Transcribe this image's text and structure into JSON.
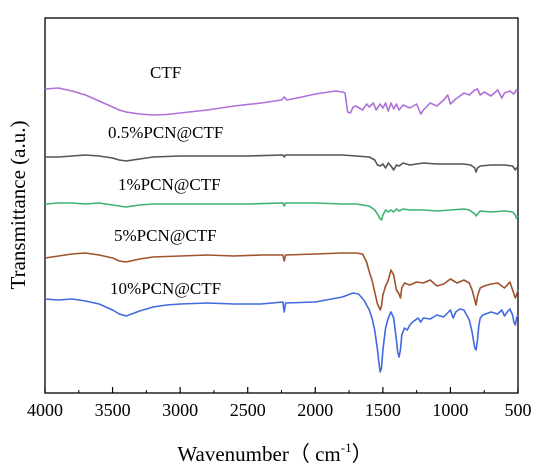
{
  "chart_data": {
    "type": "line",
    "title": "",
    "xlabel": "Wavenumber（ cm",
    "xlabel_sup": "-1",
    "xlabel_close": "）",
    "ylabel": "Transmittance (a.u.)",
    "xlim": [
      4000,
      500
    ],
    "x_reversed": true,
    "y_ticks_shown": false,
    "grid": false,
    "x_ticks": [
      4000,
      3500,
      3000,
      2500,
      2000,
      1500,
      1000,
      500
    ],
    "x_tick_labels": [
      "4000",
      "3500",
      "3000",
      "2500",
      "2000",
      "1500",
      "1000",
      "500"
    ],
    "series": [
      {
        "name": "CTF",
        "color": "#b070d8",
        "baseline": 92,
        "points": [
          [
            4000,
            89
          ],
          [
            3900,
            88
          ],
          [
            3800,
            91
          ],
          [
            3700,
            95
          ],
          [
            3600,
            101
          ],
          [
            3500,
            107
          ],
          [
            3450,
            110
          ],
          [
            3400,
            112
          ],
          [
            3300,
            114
          ],
          [
            3200,
            115
          ],
          [
            3100,
            114.5
          ],
          [
            3000,
            113
          ],
          [
            2800,
            110
          ],
          [
            2600,
            106
          ],
          [
            2400,
            103
          ],
          [
            2250,
            100
          ],
          [
            2230,
            97
          ],
          [
            2210,
            100
          ],
          [
            2100,
            97
          ],
          [
            2000,
            94
          ],
          [
            1900,
            92
          ],
          [
            1850,
            91
          ],
          [
            1800,
            92
          ],
          [
            1780,
            93
          ],
          [
            1760,
            112
          ],
          [
            1740,
            113
          ],
          [
            1720,
            107
          ],
          [
            1700,
            106
          ],
          [
            1650,
            110
          ],
          [
            1620,
            104
          ],
          [
            1600,
            107
          ],
          [
            1570,
            103
          ],
          [
            1550,
            110
          ],
          [
            1520,
            104
          ],
          [
            1500,
            108
          ],
          [
            1480,
            103
          ],
          [
            1460,
            111
          ],
          [
            1440,
            103
          ],
          [
            1420,
            109
          ],
          [
            1400,
            104
          ],
          [
            1380,
            110
          ],
          [
            1350,
            105
          ],
          [
            1300,
            108
          ],
          [
            1250,
            104
          ],
          [
            1220,
            114
          ],
          [
            1200,
            110
          ],
          [
            1150,
            103
          ],
          [
            1100,
            106
          ],
          [
            1050,
            100
          ],
          [
            1020,
            95
          ],
          [
            1000,
            104
          ],
          [
            960,
            99
          ],
          [
            900,
            93
          ],
          [
            860,
            95
          ],
          [
            820,
            90
          ],
          [
            800,
            89
          ],
          [
            780,
            95
          ],
          [
            750,
            92
          ],
          [
            700,
            96
          ],
          [
            650,
            90
          ],
          [
            620,
            98
          ],
          [
            600,
            93
          ],
          [
            560,
            91
          ],
          [
            530,
            94
          ],
          [
            510,
            90
          ],
          [
            500,
            91
          ]
        ]
      },
      {
        "name": "0.5%PCN@CTF",
        "color": "#555555",
        "baseline": 156,
        "points": [
          [
            4000,
            157
          ],
          [
            3900,
            157
          ],
          [
            3800,
            156
          ],
          [
            3700,
            155
          ],
          [
            3600,
            156
          ],
          [
            3500,
            158
          ],
          [
            3450,
            160
          ],
          [
            3400,
            161
          ],
          [
            3300,
            159
          ],
          [
            3200,
            157
          ],
          [
            3000,
            156
          ],
          [
            2500,
            156
          ],
          [
            2240,
            155
          ],
          [
            2230,
            157
          ],
          [
            2220,
            155
          ],
          [
            2000,
            155
          ],
          [
            1800,
            155
          ],
          [
            1700,
            156
          ],
          [
            1600,
            157
          ],
          [
            1560,
            160
          ],
          [
            1540,
            165
          ],
          [
            1520,
            166
          ],
          [
            1500,
            164
          ],
          [
            1480,
            168
          ],
          [
            1460,
            163
          ],
          [
            1440,
            166
          ],
          [
            1420,
            170
          ],
          [
            1400,
            165
          ],
          [
            1380,
            166
          ],
          [
            1350,
            163
          ],
          [
            1300,
            165
          ],
          [
            1250,
            164
          ],
          [
            1200,
            163
          ],
          [
            1100,
            164
          ],
          [
            1000,
            164
          ],
          [
            900,
            164
          ],
          [
            850,
            165
          ],
          [
            820,
            168
          ],
          [
            810,
            172
          ],
          [
            800,
            168
          ],
          [
            780,
            166
          ],
          [
            700,
            165
          ],
          [
            600,
            165
          ],
          [
            540,
            166
          ],
          [
            520,
            170
          ],
          [
            510,
            168
          ],
          [
            500,
            167
          ]
        ]
      },
      {
        "name": "1%PCN@CTF",
        "color": "#3cb371",
        "baseline": 203,
        "points": [
          [
            4000,
            204
          ],
          [
            3900,
            203
          ],
          [
            3800,
            203
          ],
          [
            3700,
            204
          ],
          [
            3600,
            203
          ],
          [
            3500,
            205
          ],
          [
            3450,
            206
          ],
          [
            3400,
            207
          ],
          [
            3300,
            205
          ],
          [
            3200,
            204
          ],
          [
            3000,
            204
          ],
          [
            2500,
            204
          ],
          [
            2240,
            203
          ],
          [
            2230,
            206
          ],
          [
            2220,
            203
          ],
          [
            2000,
            203
          ],
          [
            1800,
            204
          ],
          [
            1700,
            204
          ],
          [
            1600,
            206
          ],
          [
            1560,
            210
          ],
          [
            1540,
            214
          ],
          [
            1520,
            219
          ],
          [
            1510,
            220
          ],
          [
            1500,
            215
          ],
          [
            1480,
            210
          ],
          [
            1460,
            212
          ],
          [
            1440,
            210
          ],
          [
            1420,
            212
          ],
          [
            1400,
            209
          ],
          [
            1380,
            211
          ],
          [
            1350,
            209
          ],
          [
            1300,
            210
          ],
          [
            1200,
            210
          ],
          [
            1100,
            211
          ],
          [
            1000,
            210
          ],
          [
            900,
            209
          ],
          [
            860,
            210
          ],
          [
            820,
            214
          ],
          [
            810,
            216
          ],
          [
            800,
            214
          ],
          [
            780,
            211
          ],
          [
            700,
            212
          ],
          [
            600,
            211
          ],
          [
            540,
            212
          ],
          [
            520,
            215
          ],
          [
            510,
            218
          ],
          [
            500,
            216
          ]
        ]
      },
      {
        "name": "5%PCN@CTF",
        "color": "#a0522d",
        "baseline": 255,
        "points": [
          [
            4000,
            258
          ],
          [
            3900,
            256
          ],
          [
            3800,
            254
          ],
          [
            3700,
            253
          ],
          [
            3600,
            255
          ],
          [
            3500,
            258
          ],
          [
            3450,
            261
          ],
          [
            3400,
            262
          ],
          [
            3300,
            259
          ],
          [
            3200,
            257
          ],
          [
            3000,
            256
          ],
          [
            2800,
            255
          ],
          [
            2600,
            256
          ],
          [
            2400,
            255
          ],
          [
            2240,
            255
          ],
          [
            2230,
            261
          ],
          [
            2220,
            255
          ],
          [
            2000,
            254
          ],
          [
            1800,
            253
          ],
          [
            1700,
            253
          ],
          [
            1650,
            254
          ],
          [
            1620,
            262
          ],
          [
            1600,
            272
          ],
          [
            1580,
            280
          ],
          [
            1560,
            292
          ],
          [
            1540,
            304
          ],
          [
            1520,
            310
          ],
          [
            1510,
            306
          ],
          [
            1500,
            295
          ],
          [
            1480,
            286
          ],
          [
            1460,
            280
          ],
          [
            1440,
            270
          ],
          [
            1420,
            275
          ],
          [
            1400,
            290
          ],
          [
            1380,
            294
          ],
          [
            1370,
            298
          ],
          [
            1360,
            288
          ],
          [
            1340,
            283
          ],
          [
            1300,
            285
          ],
          [
            1250,
            282
          ],
          [
            1200,
            283
          ],
          [
            1150,
            280
          ],
          [
            1100,
            286
          ],
          [
            1050,
            284
          ],
          [
            1000,
            279
          ],
          [
            950,
            283
          ],
          [
            900,
            280
          ],
          [
            860,
            283
          ],
          [
            840,
            290
          ],
          [
            820,
            300
          ],
          [
            810,
            305
          ],
          [
            800,
            296
          ],
          [
            780,
            288
          ],
          [
            750,
            286
          ],
          [
            700,
            284
          ],
          [
            650,
            283
          ],
          [
            600,
            288
          ],
          [
            560,
            282
          ],
          [
            540,
            290
          ],
          [
            520,
            298
          ],
          [
            510,
            295
          ],
          [
            500,
            290
          ]
        ]
      },
      {
        "name": "10%PCN@CTF",
        "color": "#4169e1",
        "baseline": 298,
        "points": [
          [
            4000,
            299
          ],
          [
            3900,
            300
          ],
          [
            3800,
            299
          ],
          [
            3700,
            301
          ],
          [
            3600,
            304
          ],
          [
            3500,
            310
          ],
          [
            3450,
            314
          ],
          [
            3400,
            316
          ],
          [
            3300,
            311
          ],
          [
            3200,
            307
          ],
          [
            3100,
            305
          ],
          [
            3000,
            304
          ],
          [
            2800,
            303
          ],
          [
            2600,
            304
          ],
          [
            2400,
            304
          ],
          [
            2240,
            302
          ],
          [
            2230,
            312
          ],
          [
            2220,
            303
          ],
          [
            2000,
            302
          ],
          [
            1800,
            297
          ],
          [
            1720,
            293
          ],
          [
            1680,
            294
          ],
          [
            1640,
            300
          ],
          [
            1600,
            310
          ],
          [
            1580,
            318
          ],
          [
            1560,
            330
          ],
          [
            1540,
            350
          ],
          [
            1530,
            362
          ],
          [
            1520,
            372
          ],
          [
            1510,
            368
          ],
          [
            1500,
            350
          ],
          [
            1480,
            328
          ],
          [
            1460,
            318
          ],
          [
            1440,
            312
          ],
          [
            1420,
            318
          ],
          [
            1400,
            340
          ],
          [
            1390,
            352
          ],
          [
            1380,
            357
          ],
          [
            1370,
            350
          ],
          [
            1360,
            335
          ],
          [
            1340,
            328
          ],
          [
            1320,
            330
          ],
          [
            1300,
            325
          ],
          [
            1280,
            322
          ],
          [
            1260,
            320
          ],
          [
            1240,
            318
          ],
          [
            1220,
            322
          ],
          [
            1200,
            318
          ],
          [
            1150,
            319
          ],
          [
            1100,
            315
          ],
          [
            1050,
            317
          ],
          [
            1000,
            310
          ],
          [
            980,
            318
          ],
          [
            960,
            312
          ],
          [
            930,
            309
          ],
          [
            900,
            310
          ],
          [
            880,
            315
          ],
          [
            860,
            320
          ],
          [
            840,
            332
          ],
          [
            830,
            340
          ],
          [
            820,
            348
          ],
          [
            810,
            350
          ],
          [
            800,
            340
          ],
          [
            790,
            326
          ],
          [
            780,
            318
          ],
          [
            760,
            315
          ],
          [
            700,
            312
          ],
          [
            650,
            314
          ],
          [
            620,
            310
          ],
          [
            600,
            316
          ],
          [
            580,
            312
          ],
          [
            560,
            309
          ],
          [
            540,
            315
          ],
          [
            530,
            322
          ],
          [
            520,
            325
          ],
          [
            510,
            318
          ],
          [
            500,
            315
          ]
        ]
      }
    ]
  }
}
